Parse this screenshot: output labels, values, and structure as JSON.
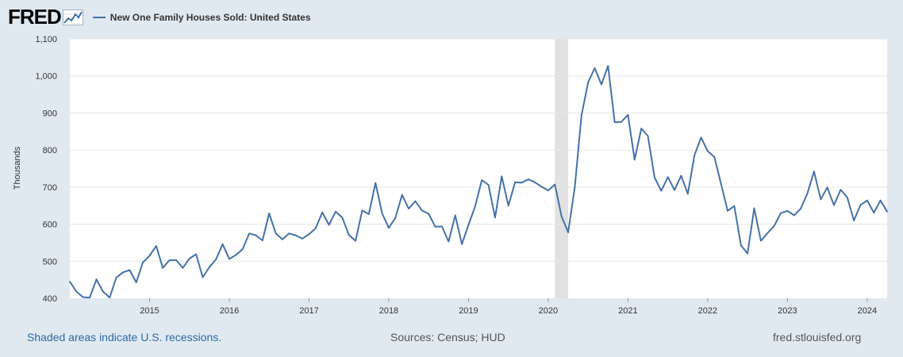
{
  "header": {
    "logo": "FRED",
    "series_label": "New One Family Houses Sold: United States",
    "series_color": "#4572a7"
  },
  "footer": {
    "recession_note": "Shaded areas indicate U.S. recessions.",
    "sources": "Sources: Census; HUD",
    "site": "fred.stlouisfed.org"
  },
  "chart_data": {
    "type": "line",
    "title": "New One Family Houses Sold: United States",
    "ylabel": "Thousands",
    "xlabel": "",
    "ylim": [
      400,
      1100
    ],
    "yticks": [
      400,
      500,
      600,
      700,
      800,
      900,
      1000,
      1100
    ],
    "ytick_labels": [
      "400",
      "500",
      "600",
      "700",
      "800",
      "900",
      "1,000",
      "1,100"
    ],
    "xticks": [
      2015,
      2016,
      2017,
      2018,
      2019,
      2020,
      2021,
      2022,
      2023,
      2024
    ],
    "xlim": [
      2014.0,
      2024.25
    ],
    "grid": "horizontal",
    "background_color": "#ffffff",
    "recession_color": "#e1e1e1",
    "recessions": [
      [
        2020.083,
        2020.25
      ]
    ],
    "series": [
      {
        "name": "New One Family Houses Sold: United States",
        "color": "#4572a7",
        "start": 2014.0,
        "frequency": "monthly",
        "values": [
          445,
          418,
          403,
          402,
          451,
          418,
          402,
          456,
          470,
          476,
          443,
          497,
          515,
          541,
          482,
          503,
          503,
          482,
          507,
          519,
          457,
          484,
          505,
          546,
          506,
          517,
          532,
          575,
          570,
          556,
          629,
          575,
          559,
          575,
          570,
          561,
          573,
          589,
          632,
          598,
          634,
          618,
          571,
          555,
          637,
          627,
          711,
          629,
          590,
          617,
          679,
          642,
          662,
          637,
          628,
          593,
          594,
          553,
          624,
          546,
          598,
          648,
          719,
          706,
          618,
          729,
          650,
          713,
          712,
          721,
          713,
          701,
          691,
          707,
          621,
          578,
          700,
          893,
          983,
          1021,
          977,
          1027,
          875,
          876,
          895,
          774,
          858,
          838,
          726,
          690,
          727,
          692,
          731,
          682,
          786,
          834,
          797,
          781,
          709,
          636,
          649,
          543,
          521,
          643,
          555,
          576,
          595,
          630,
          636,
          624,
          642,
          683,
          742,
          667,
          699,
          651,
          693,
          672,
          610,
          652,
          664,
          631,
          664,
          634
        ]
      }
    ]
  }
}
